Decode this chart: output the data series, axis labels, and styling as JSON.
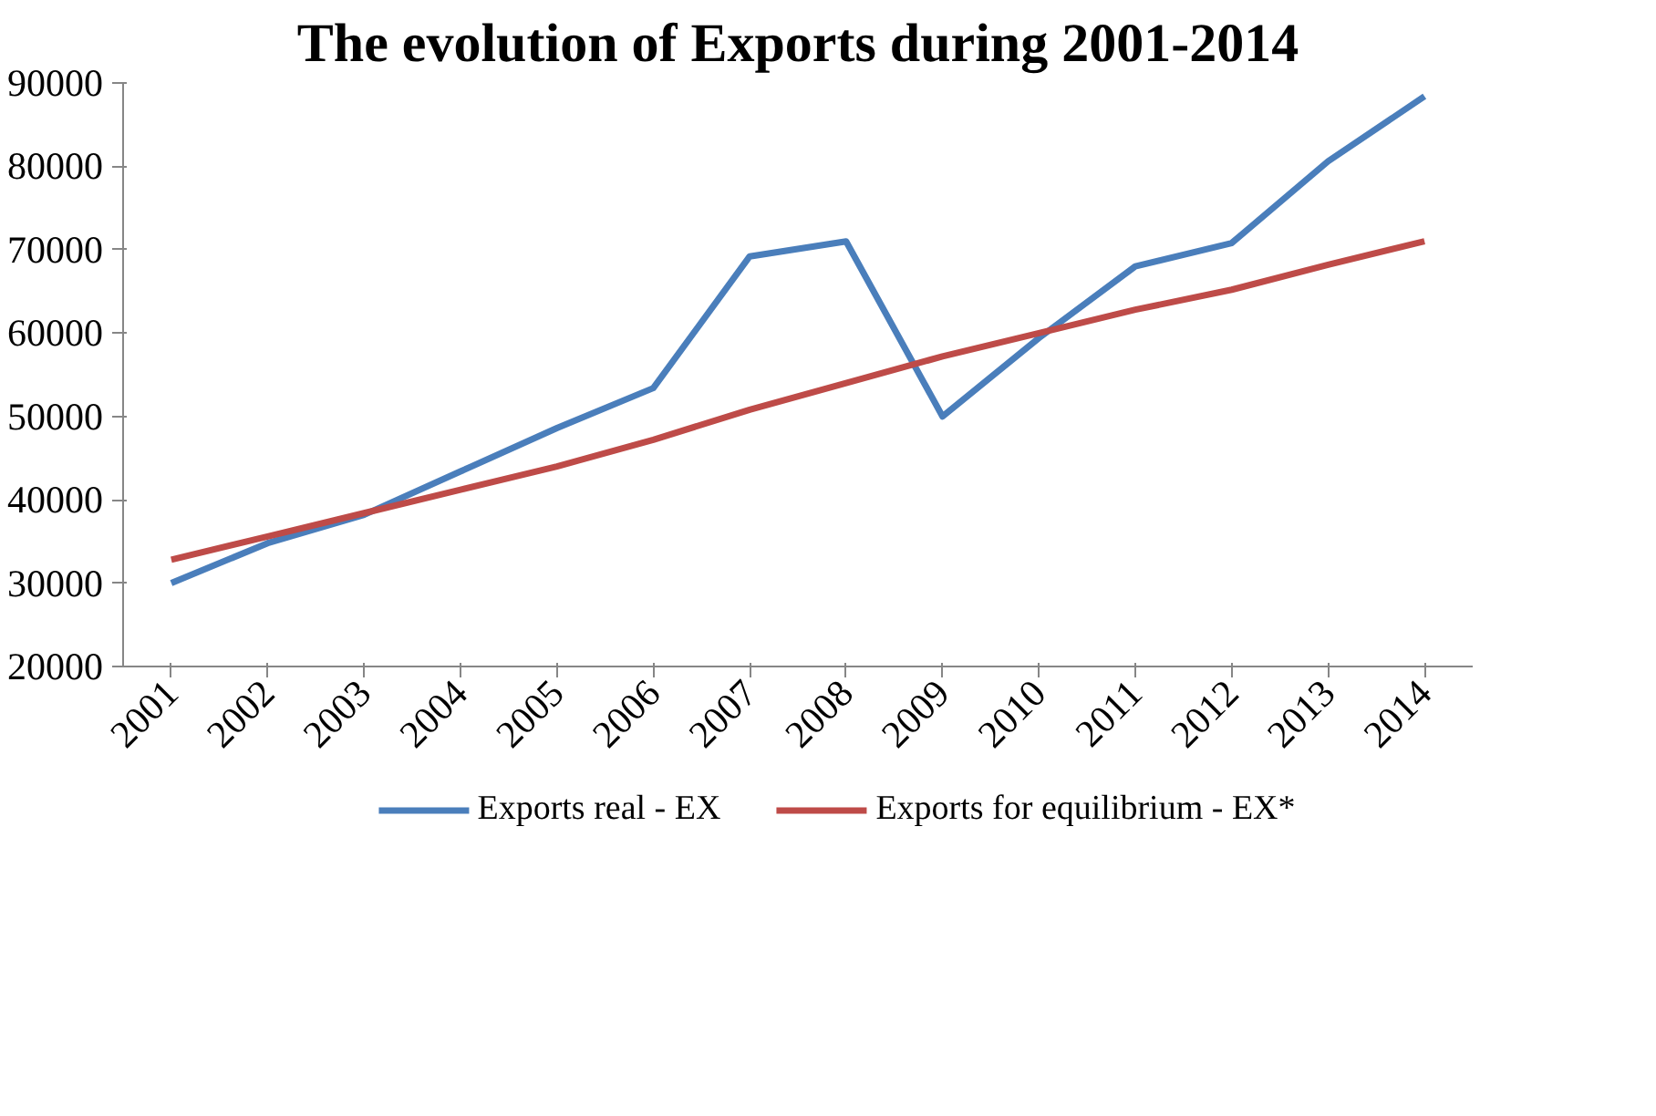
{
  "chart_data": {
    "type": "line",
    "title": "The evolution of Exports during 2001-2014",
    "categories": [
      "2001",
      "2002",
      "2003",
      "2004",
      "2005",
      "2006",
      "2007",
      "2008",
      "2009",
      "2010",
      "2011",
      "2012",
      "2013",
      "2014"
    ],
    "series": [
      {
        "name": "Exports real - EX",
        "color": "#4a7ebb",
        "values": [
          30000,
          34800,
          38200,
          43400,
          48600,
          53400,
          69200,
          71000,
          50000,
          59400,
          68000,
          70800,
          80600,
          88400
        ]
      },
      {
        "name": "Exports for equilibrium - EX*",
        "color": "#be4b48",
        "values": [
          32800,
          35600,
          38400,
          41200,
          44000,
          47200,
          50800,
          54000,
          57200,
          60000,
          62800,
          65200,
          68200,
          71000
        ]
      }
    ],
    "ylim": [
      20000,
      90000
    ],
    "yticks": [
      20000,
      30000,
      40000,
      50000,
      60000,
      70000,
      80000,
      90000
    ],
    "grid": false,
    "legend": "bottom",
    "marker": "none",
    "line_style": "solid"
  }
}
